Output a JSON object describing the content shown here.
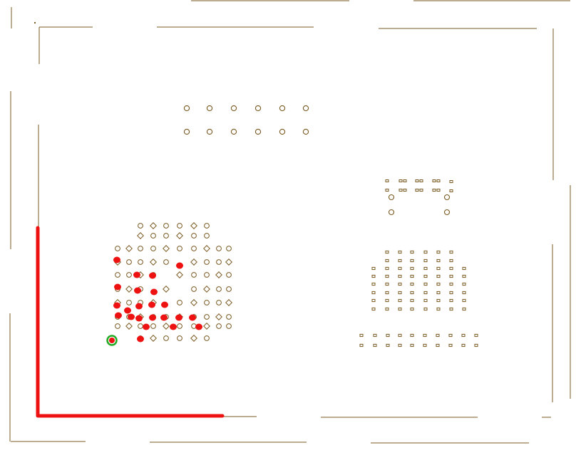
{
  "colors": {
    "background": "#ffffff",
    "board_outline": "#7a5a22",
    "footprint": "#7a5a22",
    "highlighted_trace": "#ee1111",
    "highlighted_pad": "#ee1111",
    "selected_pad_ring": "#22aa22"
  },
  "view": {
    "name": "pcb-layout-view",
    "layers_visible": [
      "board-outline",
      "footprints",
      "highlighted-net"
    ]
  },
  "components": [
    {
      "name": "bga-component",
      "shape": "circle-pad-array"
    },
    {
      "name": "pin-header-component",
      "shape": "through-hole-row"
    },
    {
      "name": "connector-component",
      "shape": "smd-bracket-pads"
    },
    {
      "name": "qfp-component",
      "shape": "smd-bracket-grid"
    },
    {
      "name": "smd-strip-component",
      "shape": "smd-row"
    }
  ],
  "highlighted_net": {
    "selected_pad_count": 1,
    "trace": "L-shaped"
  }
}
